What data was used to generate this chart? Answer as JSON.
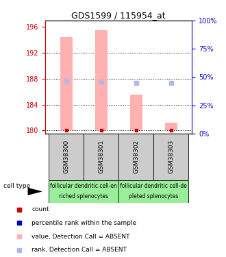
{
  "title": "GDS1599 / 115954_at",
  "samples": [
    "GSM38300",
    "GSM38301",
    "GSM38302",
    "GSM38303"
  ],
  "ylim_left": [
    179.5,
    197.0
  ],
  "ylim_right": [
    0,
    100
  ],
  "yticks_left": [
    180,
    184,
    188,
    192,
    196
  ],
  "yticks_right": [
    0,
    25,
    50,
    75,
    100
  ],
  "bar_bottom": 180,
  "bar_values": [
    194.5,
    195.5,
    185.5,
    181.2
  ],
  "rank_values": [
    187.7,
    187.6,
    187.3,
    187.3
  ],
  "cell_types_top": [
    "follicular dendritic cell-en",
    "follicular dendritic cell-de"
  ],
  "cell_types_bottom": [
    "riched splenocytes",
    "pleted splenocytes"
  ],
  "cell_type_label": "cell type",
  "bar_color": "#ffb0b0",
  "rank_color": "#b0b8e8",
  "dot_red_color": "#cc0000",
  "dot_blue_color": "#0000cc",
  "gray_bg": "#cccccc",
  "green_bg": "#99ee99",
  "legend_items": [
    {
      "color": "#cc0000",
      "label": "count"
    },
    {
      "color": "#0000cc",
      "label": "percentile rank within the sample"
    },
    {
      "color": "#ffb0b0",
      "label": "value, Detection Call = ABSENT"
    },
    {
      "color": "#b0b8e8",
      "label": "rank, Detection Call = ABSENT"
    }
  ],
  "left_axis_color": "#cc0000",
  "right_axis_color": "#0000cc",
  "gridline_ticks": [
    180,
    184,
    188,
    192
  ]
}
